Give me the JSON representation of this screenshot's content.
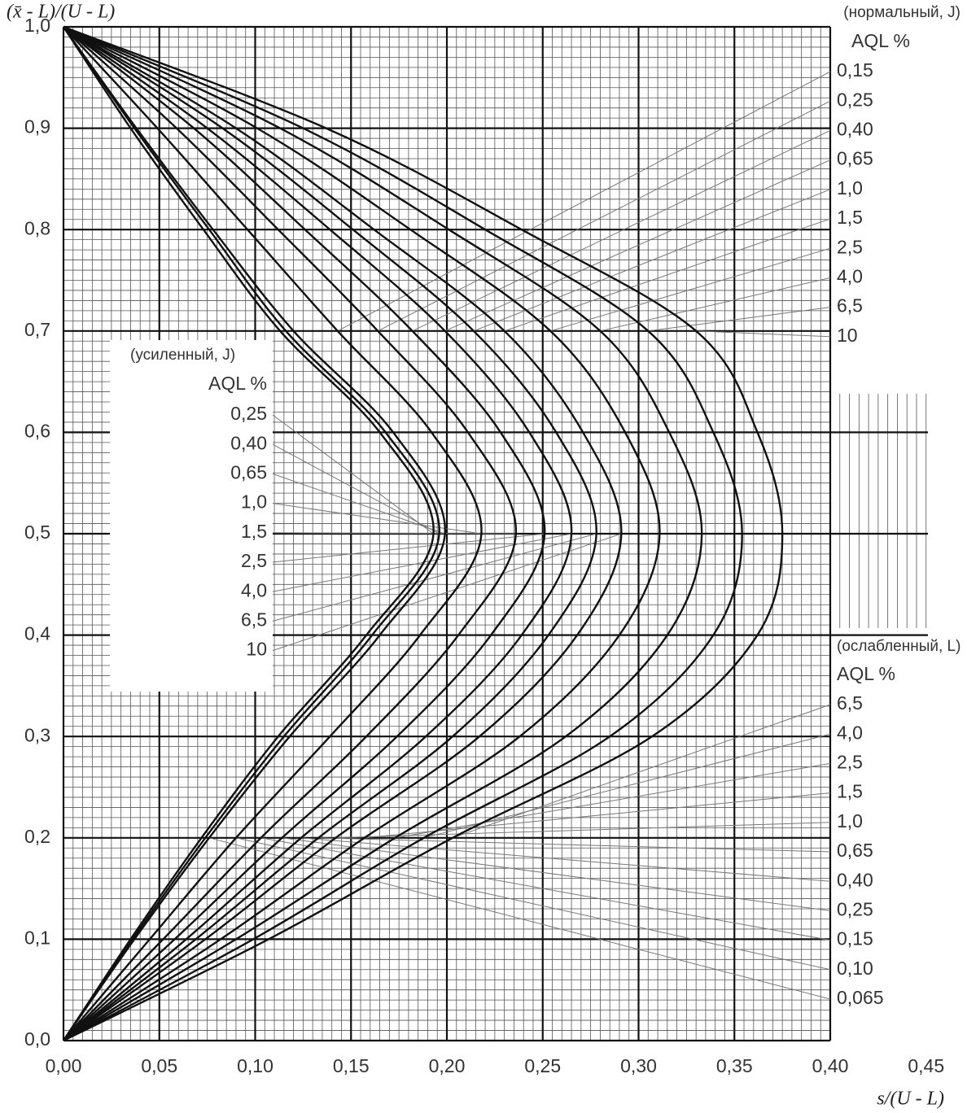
{
  "chart_data": {
    "type": "curves",
    "y_axis_label": "(x̄ - L)/(U - L)",
    "x_axis_label": "s/(U - L)",
    "xlim": [
      0,
      0.45
    ],
    "ylim": [
      0,
      1.0
    ],
    "xticks": [
      {
        "value": 0,
        "label": "0,00"
      },
      {
        "value": 0.05,
        "label": "0,05"
      },
      {
        "value": 0.1,
        "label": "0,10"
      },
      {
        "value": 0.15,
        "label": "0,15"
      },
      {
        "value": 0.2,
        "label": "0,20"
      },
      {
        "value": 0.25,
        "label": "0,25"
      },
      {
        "value": 0.3,
        "label": "0,30"
      },
      {
        "value": 0.35,
        "label": "0,35"
      },
      {
        "value": 0.4,
        "label": "0,40"
      },
      {
        "value": 0.45,
        "label": "0,45"
      }
    ],
    "yticks": [
      {
        "value": 0,
        "label": "0,0"
      },
      {
        "value": 0.1,
        "label": "0,1"
      },
      {
        "value": 0.2,
        "label": "0,2"
      },
      {
        "value": 0.3,
        "label": "0,3"
      },
      {
        "value": 0.4,
        "label": "0,4"
      },
      {
        "value": 0.5,
        "label": "0,5"
      },
      {
        "value": 0.6,
        "label": "0,6"
      },
      {
        "value": 0.7,
        "label": "0,7"
      },
      {
        "value": 0.8,
        "label": "0,8"
      },
      {
        "value": 0.9,
        "label": "0,9"
      },
      {
        "value": 1.0,
        "label": "1,0"
      }
    ],
    "grid": true,
    "color": "#111111",
    "y": [
      0,
      0.1,
      0.2,
      0.3,
      0.4,
      0.5,
      0.6,
      0.7,
      0.8,
      0.9,
      1.0
    ],
    "series": [
      {
        "x": [
          0,
          0.035,
          0.072,
          0.112,
          0.158,
          0.193,
          0.165,
          0.113,
          0.073,
          0.035,
          0
        ]
      },
      {
        "x": [
          0,
          0.036,
          0.074,
          0.115,
          0.161,
          0.196,
          0.168,
          0.116,
          0.076,
          0.037,
          0
        ]
      },
      {
        "x": [
          0,
          0.037,
          0.076,
          0.118,
          0.165,
          0.199,
          0.172,
          0.12,
          0.078,
          0.038,
          0
        ]
      },
      {
        "x": [
          0,
          0.045,
          0.09,
          0.139,
          0.186,
          0.218,
          0.192,
          0.143,
          0.096,
          0.049,
          0
        ]
      },
      {
        "x": [
          0,
          0.052,
          0.103,
          0.158,
          0.206,
          0.236,
          0.211,
          0.164,
          0.112,
          0.059,
          0
        ]
      },
      {
        "x": [
          0,
          0.058,
          0.114,
          0.174,
          0.223,
          0.251,
          0.228,
          0.182,
          0.126,
          0.068,
          0
        ]
      },
      {
        "x": [
          0,
          0.064,
          0.124,
          0.189,
          0.239,
          0.265,
          0.243,
          0.199,
          0.139,
          0.075,
          0
        ]
      },
      {
        "x": [
          0,
          0.069,
          0.133,
          0.203,
          0.253,
          0.278,
          0.257,
          0.214,
          0.151,
          0.083,
          0
        ]
      },
      {
        "x": [
          0,
          0.074,
          0.142,
          0.217,
          0.268,
          0.291,
          0.271,
          0.23,
          0.162,
          0.09,
          0
        ]
      },
      {
        "x": [
          0,
          0.082,
          0.157,
          0.238,
          0.29,
          0.311,
          0.293,
          0.254,
          0.181,
          0.101,
          0
        ]
      },
      {
        "x": [
          0,
          0.09,
          0.173,
          0.262,
          0.315,
          0.333,
          0.316,
          0.28,
          0.201,
          0.113,
          0
        ]
      },
      {
        "x": [
          0,
          0.099,
          0.188,
          0.285,
          0.339,
          0.354,
          0.339,
          0.305,
          0.22,
          0.125,
          0
        ]
      },
      {
        "x": [
          0,
          0.107,
          0.203,
          0.307,
          0.362,
          0.375,
          0.362,
          0.33,
          0.239,
          0.137,
          0
        ]
      }
    ],
    "normal": {
      "title": "(нормальный, J)",
      "heading": "AQL %",
      "labels": [
        "0,15",
        "0,25",
        "0,40",
        "0,65",
        "1,0",
        "1,5",
        "2,5",
        "4,0",
        "6,5",
        "10"
      ]
    },
    "tightened": {
      "title": "(усиленный, J)",
      "heading": "AQL %",
      "labels": [
        "0,25",
        "0,40",
        "0,65",
        "1,0",
        "1,5",
        "2,5",
        "4,0",
        "6,5",
        "10"
      ]
    },
    "reduced": {
      "title": "(ослабленный, L)",
      "heading": "AQL %",
      "labels": [
        "6,5",
        "4,0",
        "2,5",
        "1,5",
        "1,0",
        "0,65",
        "0,40",
        "0,25",
        "0,15",
        "0,10",
        "0,065"
      ]
    }
  }
}
